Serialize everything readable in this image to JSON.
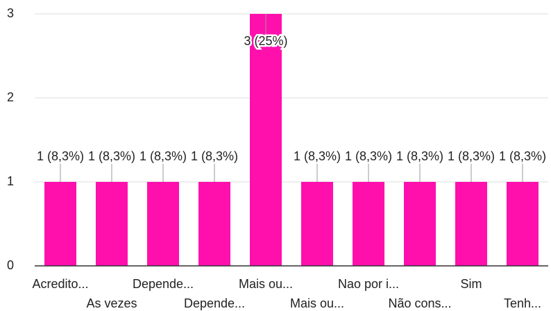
{
  "chart_data": {
    "type": "bar",
    "categories": [
      "Acredito...",
      "As vezes",
      "Depende...",
      "Depende...",
      "Mais ou...",
      "Mais ou...",
      "Nao por i...",
      "Não cons...",
      "Sim",
      "Tenh..."
    ],
    "values": [
      1,
      1,
      1,
      1,
      3,
      1,
      1,
      1,
      1,
      1
    ],
    "value_labels": [
      "1 (8,3%)",
      "1 (8,3%)",
      "1 (8,3%)",
      "1 (8,3%)",
      "3 (25%)",
      "1 (8,3%)",
      "1 (8,3%)",
      "1 (8,3%)",
      "1 (8,3%)",
      "1 (8,3%)"
    ],
    "color": "#ff10ad",
    "ylim": [
      0,
      3
    ],
    "yticks": [
      0,
      1,
      2,
      3
    ],
    "grid": true
  }
}
